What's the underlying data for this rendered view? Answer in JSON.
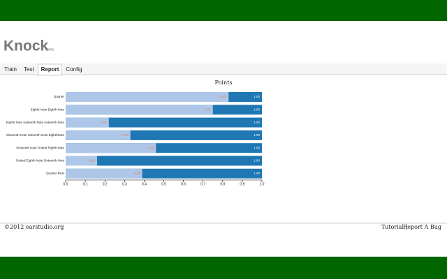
{
  "header": {
    "app_name": "Knock",
    "badge": "beta"
  },
  "tabs": [
    "Train",
    "Test",
    "Report",
    "Config"
  ],
  "active_tab": 2,
  "chart_data": {
    "type": "bar",
    "orientation": "horizontal",
    "overlay": true,
    "title": "Points",
    "categories": [
      "Quarter",
      "Eighth Note Eighth Note",
      "Eighth Note sixteenth Note sixteenth Note",
      "Sixteenth Note sixteenth Note EighthNote",
      "Sixteenth Note Dotted Eighth Note",
      "Dotted Eighth Note Sixteenth Note",
      "Quarter Rest"
    ],
    "series": [
      {
        "color": "#1f77b4",
        "values": [
          1,
          1,
          1,
          1,
          1,
          1,
          1
        ],
        "value_labels": [
          "1.00",
          "1.00",
          "1.00",
          "1.00",
          "1.00",
          "1.00",
          "1.00"
        ]
      },
      {
        "color": "#aec7e8",
        "values": [
          0.83,
          0.75,
          0.22,
          0.33,
          0.46,
          0.16,
          0.39
        ]
      }
    ],
    "xlim": [
      0,
      1
    ],
    "xticks": [
      {
        "value": 0,
        "label": "0.0"
      },
      0.1,
      0.2,
      0.3,
      0.4,
      0.5,
      0.6,
      0.7,
      0.8,
      0.9,
      {
        "value": 1,
        "label": "1.0"
      }
    ]
  },
  "footer": {
    "copyright": "©2012  earstudio.org",
    "links": [
      "Tutorial",
      "Report A Bug"
    ],
    "separator": "|"
  }
}
